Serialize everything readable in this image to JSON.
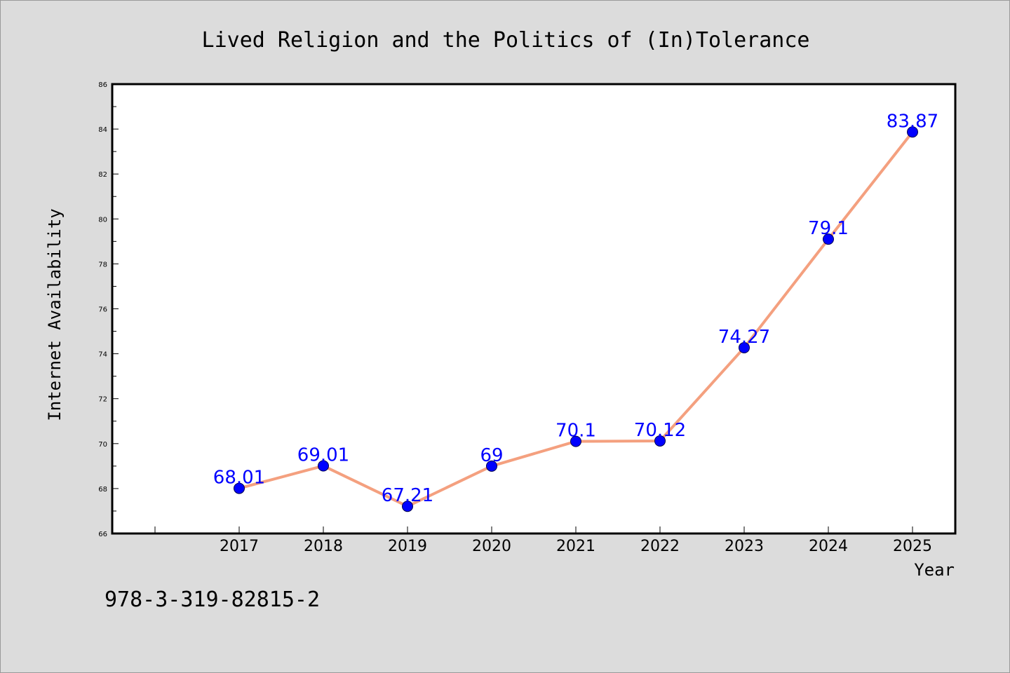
{
  "chart_data": {
    "type": "line",
    "title": "Lived Religion and the Politics of (In)Tolerance",
    "xlabel": "Year",
    "ylabel": "Internet Availability",
    "categories": [
      "2017",
      "2018",
      "2019",
      "2020",
      "2021",
      "2022",
      "2023",
      "2024",
      "2025"
    ],
    "values": [
      68.01,
      69.01,
      67.21,
      69,
      70.1,
      70.12,
      74.27,
      79.1,
      83.87
    ],
    "data_labels": [
      "68.01",
      "69.01",
      "67.21",
      "69",
      "70.1",
      "70.12",
      "74.27",
      "79.1",
      "83.87"
    ],
    "ylim": [
      66,
      86
    ],
    "yticks": [
      66,
      68,
      70,
      72,
      74,
      76,
      78,
      80,
      82,
      84,
      86
    ],
    "grid": false,
    "line_color": "#f4a07f",
    "marker_color": "#0000ff",
    "label_color": "#0000ff"
  },
  "footer": {
    "isbn": "978-3-319-82815-2"
  }
}
